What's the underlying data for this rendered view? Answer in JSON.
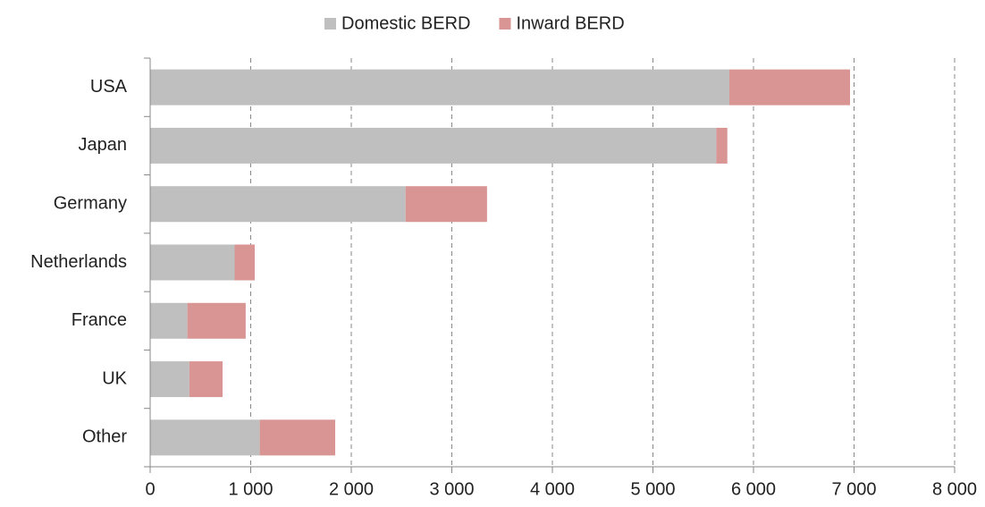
{
  "chart_data": {
    "type": "bar",
    "orientation": "horizontal",
    "stacked": true,
    "categories": [
      "USA",
      "Japan",
      "Germany",
      "Netherlands",
      "France",
      "UK",
      "Other"
    ],
    "series": [
      {
        "name": "Domestic BERD",
        "color": "#bfbfbf",
        "values": [
          5760,
          5630,
          2540,
          840,
          370,
          390,
          1090
        ]
      },
      {
        "name": "Inward BERD",
        "color": "#d99594",
        "values": [
          1200,
          110,
          810,
          200,
          580,
          330,
          750
        ]
      }
    ],
    "xlim": [
      0,
      8000
    ],
    "xticks": [
      0,
      {
        "value": 1000,
        "label": "1 000"
      },
      {
        "value": 2000,
        "label": "2 000"
      },
      {
        "value": 3000,
        "label": "3 000"
      },
      {
        "value": 4000,
        "label": "4 000"
      },
      {
        "value": 5000,
        "label": "5 000"
      },
      {
        "value": 6000,
        "label": "6 000"
      },
      {
        "value": 7000,
        "label": "7 000"
      },
      {
        "value": 8000,
        "label": "8 000"
      }
    ],
    "grid": true,
    "legend": "top"
  }
}
